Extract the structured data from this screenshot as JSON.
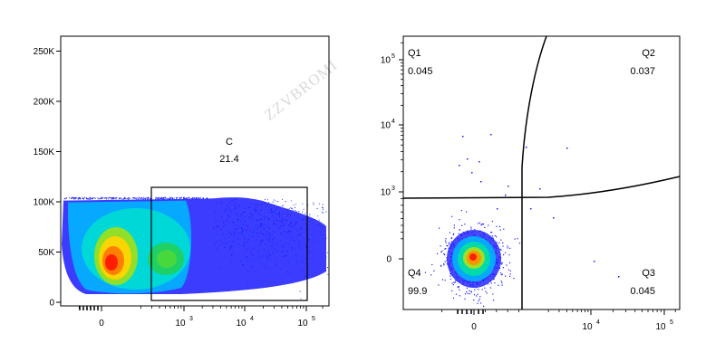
{
  "watermark": "ZZVBROMI",
  "chart_data": [
    {
      "type": "scatter",
      "title": "",
      "xlabel": "",
      "ylabel": "",
      "x_scale": "biexponential",
      "y_scale": "linear",
      "y_ticks": [
        {
          "value": 0,
          "label": "0"
        },
        {
          "value": 50000,
          "label": "50K"
        },
        {
          "value": 100000,
          "label": "100K"
        },
        {
          "value": 150000,
          "label": "150K"
        },
        {
          "value": 200000,
          "label": "200K"
        },
        {
          "value": 250000,
          "label": "250K"
        }
      ],
      "x_ticks": [
        {
          "value": 0,
          "label": "0"
        },
        {
          "value": 1000,
          "label": "10",
          "sup": "3"
        },
        {
          "value": 10000,
          "label": "10",
          "sup": "4"
        },
        {
          "value": 100000,
          "label": "10",
          "sup": "5"
        }
      ],
      "ylim": [
        0,
        262144
      ],
      "gates": [
        {
          "name": "C",
          "percent": "21.4",
          "x_range": [
            400,
            100000
          ],
          "y_range": [
            5000,
            115000
          ]
        }
      ],
      "populations": [
        {
          "x": 120,
          "y": 40000,
          "fraction": 0.45
        },
        {
          "x": 600,
          "y": 45000,
          "fraction": 0.3
        },
        {
          "x": 8000,
          "y": 55000,
          "fraction": 0.25
        }
      ]
    },
    {
      "type": "scatter",
      "title": "",
      "xlabel": "",
      "ylabel": "",
      "x_scale": "biexponential",
      "y_scale": "biexponential",
      "y_ticks": [
        {
          "value": 0,
          "label": "0"
        },
        {
          "value": 1000,
          "label": "10",
          "sup": "3"
        },
        {
          "value": 10000,
          "label": "10",
          "sup": "4"
        },
        {
          "value": 100000,
          "label": "10",
          "sup": "5"
        }
      ],
      "x_ticks": [
        {
          "value": 0,
          "label": "0"
        },
        {
          "value": 10000,
          "label": "10",
          "sup": "4"
        },
        {
          "value": 100000,
          "label": "10",
          "sup": "5"
        }
      ],
      "quadrants": [
        {
          "name": "Q1",
          "percent": "0.045",
          "position": "top-left"
        },
        {
          "name": "Q2",
          "percent": "0.037",
          "position": "top-right"
        },
        {
          "name": "Q3",
          "percent": "0.045",
          "position": "bottom-right"
        },
        {
          "name": "Q4",
          "percent": "99.9",
          "position": "bottom-left"
        }
      ],
      "populations": [
        {
          "x": 0,
          "y": 0,
          "fraction": 0.999
        }
      ]
    }
  ]
}
